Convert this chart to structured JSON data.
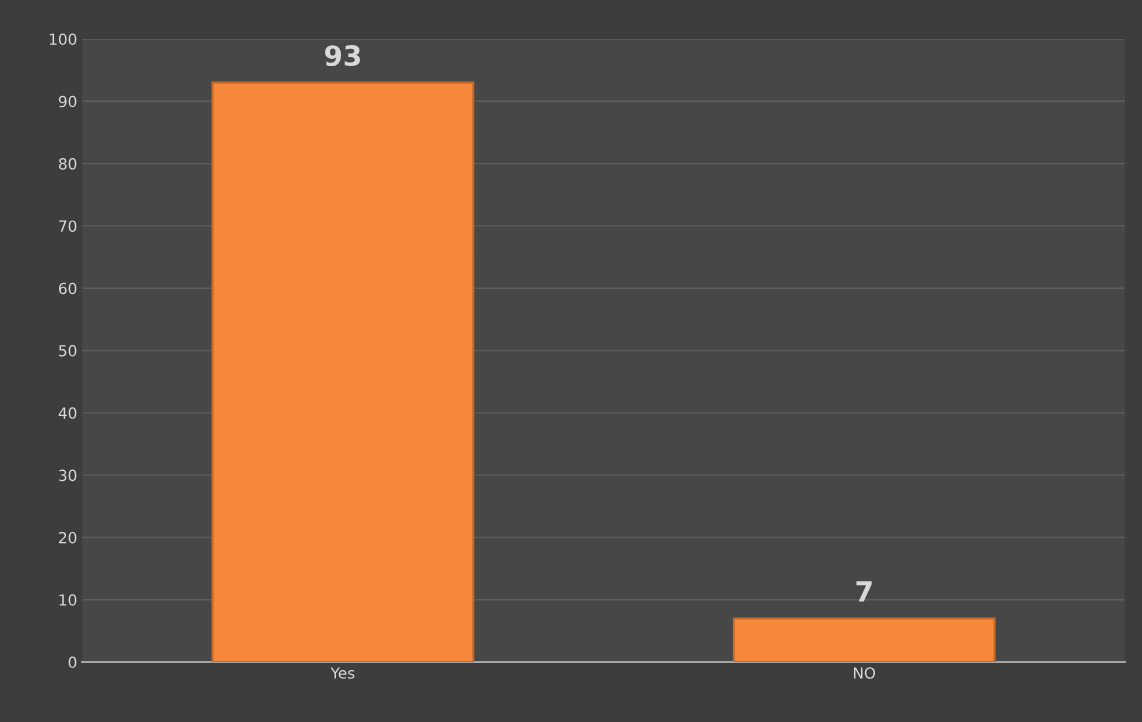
{
  "chart_data": {
    "type": "bar",
    "categories": [
      "Yes",
      "NO"
    ],
    "values": [
      93,
      7
    ],
    "color": "#f6883c",
    "ylim": [
      0,
      100
    ],
    "yticks": [
      0,
      10,
      20,
      30,
      40,
      50,
      60,
      70,
      80,
      90,
      100
    ],
    "grid": "y",
    "data_labels": true
  }
}
